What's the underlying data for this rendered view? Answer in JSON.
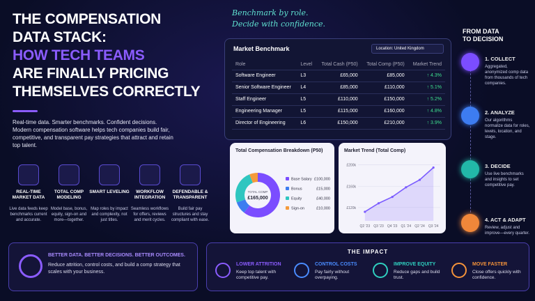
{
  "hero": {
    "title_lines": [
      "THE COMPENSATION",
      "DATA STACK:",
      "HOW TECH TEAMS",
      "ARE FINALLY PRICING",
      "THEMSELVES CORRECTLY"
    ],
    "tagline": "Real-time data. Smarter benchmarks. Confident decisions.",
    "description": "Modern compensation software helps tech companies build fair, competitive, and transparent pay strategies that attract and retain top talent."
  },
  "features": [
    {
      "title": "REAL-TIME MARKET DATA",
      "text": "Live data feeds keep benchmarks current and accurate."
    },
    {
      "title": "TOTAL COMP MODELING",
      "text": "Model base, bonus, equity, sign-on and more—together."
    },
    {
      "title": "SMART LEVELING",
      "text": "Map roles by impact and complexity, not just titles."
    },
    {
      "title": "WORKFLOW INTEGRATION",
      "text": "Seamless workflows for offers, reviews and merit cycles."
    },
    {
      "title": "DEFENDABLE & TRANSPARENT",
      "text": "Build fair pay structures and stay compliant with ease."
    }
  ],
  "callout": {
    "title": "BETTER DATA. BETTER DECISIONS. BETTER OUTCOMES.",
    "text": "Reduce attrition, control costs, and build a comp strategy that scales with your business."
  },
  "annotation": [
    "Benchmark by role.",
    "Decide with confidence."
  ],
  "benchmark": {
    "title": "Market Benchmark",
    "location": "Location: United Kingdom",
    "columns": [
      "Role",
      "Level",
      "Total Cash (P50)",
      "Total Comp (P50)",
      "Market Trend"
    ],
    "rows": [
      [
        "Software Engineer",
        "L3",
        "£65,000",
        "£85,000",
        "4.3%"
      ],
      [
        "Senior Software Engineer",
        "L4",
        "£85,000",
        "£110,000",
        "5.1%"
      ],
      [
        "Staff Engineer",
        "L5",
        "£110,000",
        "£150,000",
        "5.2%"
      ],
      [
        "Engineering Manager",
        "L5",
        "£115,000",
        "£160,000",
        "4.8%"
      ],
      [
        "Director of Engineering",
        "L6",
        "£150,000",
        "£210,000",
        "3.9%"
      ]
    ]
  },
  "breakdown": {
    "title": "Total Compensation Breakdown (P50)",
    "center_label": "TOTAL COMP",
    "center_value": "£165,000",
    "items": [
      {
        "name": "Base Salary",
        "value": 100000,
        "label": "£100,000",
        "color": "#7b4dff"
      },
      {
        "name": "Bonus",
        "value": 15000,
        "label": "£15,000",
        "color": "#3d7cf0"
      },
      {
        "name": "Equity",
        "value": 40000,
        "label": "£40,000",
        "color": "#2fc6c0"
      },
      {
        "name": "Sign-on",
        "value": 10000,
        "label": "£10,000",
        "color": "#f59a3a"
      }
    ]
  },
  "trend": {
    "title": "Market Trend (Total Comp)",
    "categories": [
      "Q2 '23",
      "Q3 '23",
      "Q4 '23",
      "Q1 '24",
      "Q2 '24",
      "Q3 '24"
    ],
    "values": [
      112,
      128,
      140,
      158,
      172,
      195
    ],
    "ylim": [
      95,
      210
    ],
    "yticks": [
      {
        "value": 120,
        "label": "£120k"
      },
      {
        "value": 160,
        "label": "£160k"
      },
      {
        "value": 200,
        "label": "£200k"
      }
    ],
    "color": "#7b5cff"
  },
  "impact": {
    "title": "THE IMPACT",
    "items": [
      {
        "title": "LOWER ATTRITION",
        "text": "Keep top talent with competitive pay."
      },
      {
        "title": "CONTROL COSTS",
        "text": "Pay fairly without overpaying."
      },
      {
        "title": "IMPROVE EQUITY",
        "text": "Reduce gaps and build trust."
      },
      {
        "title": "MOVE FASTER",
        "text": "Close offers quickly with confidence."
      }
    ]
  },
  "steps": {
    "title_lines": [
      "FROM DATA",
      "TO DECISION"
    ],
    "items": [
      {
        "title": "1. COLLECT",
        "text": "Aggregated, anonymized comp data from thousands of tech companies.",
        "color": "#7b4dff"
      },
      {
        "title": "2. ANALYZE",
        "text": "Our algorithms normalize data for roles, levels, location, and stage.",
        "color": "#3d7cf0"
      },
      {
        "title": "3. DECIDE",
        "text": "Use live benchmarks and insights to set competitive pay.",
        "color": "#22b8a8"
      },
      {
        "title": "4. ACT & ADAPT",
        "text": "Review, adjust and improve—every quarter.",
        "color": "#f0873a"
      }
    ]
  }
}
